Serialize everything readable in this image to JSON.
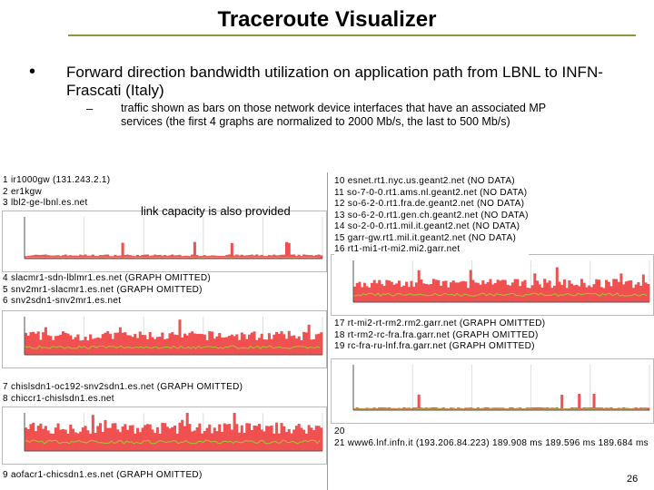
{
  "title": "Traceroute Visualizer",
  "bullet": {
    "text": "Forward direction bandwidth utilization on application path from LBNL to INFN-Frascati (Italy)",
    "sub": "traffic shown as bars on those network device interfaces that have an associated MP services (the first 4 graphs are normalized to 2000 Mb/s, the last to 500 Mb/s)"
  },
  "left_panels": [
    {
      "hops": [
        "1 ir1000gw (131.243.2.1)",
        "2 er1kgw",
        "3 lbl2-ge-lbnl.es.net"
      ],
      "note": "link capacity is also provided"
    },
    {
      "hops": [
        "4 slacmr1-sdn-lblmr1.es.net (GRAPH OMITTED)",
        "5 snv2mr1-slacmr1.es.net (GRAPH OMITTED)",
        "6 snv2sdn1-snv2mr1.es.net"
      ]
    },
    {
      "hops": [
        "7 chislsdn1-oc192-snv2sdn1.es.net (GRAPH OMITTED)",
        "8 chiccr1-chislsdn1.es.net"
      ]
    },
    {
      "hops": [
        "9 aofacr1-chicsdn1.es.net (GRAPH OMITTED)"
      ]
    }
  ],
  "right_panels": [
    {
      "hops": [
        "10 esnet.rt1.nyc.us.geant2.net (NO DATA)",
        "11 so-7-0-0.rt1.ams.nl.geant2.net (NO DATA)",
        "12 so-6-2-0.rt1.fra.de.geant2.net (NO DATA)",
        "13 so-6-2-0.rt1.gen.ch.geant2.net (NO DATA)",
        "14 so-2-0-0.rt1.mil.it.geant2.net (NO DATA)",
        "15 garr-gw.rt1.mil.it.geant2.net (NO DATA)",
        "16 rt1-mi1-rt-mi2.mi2.garr.net"
      ]
    },
    {
      "hops": [
        "17 rt-mi2-rt-rm2.rm2.garr.net (GRAPH OMITTED)",
        "18 rt-rm2-rc-fra.fra.garr.net (GRAPH OMITTED)",
        "19 rc-fra-ru-lnf.fra.garr.net (GRAPH OMITTED)"
      ]
    },
    {
      "hops": [
        "20",
        "21 www6.lnf.infn.it (193.206.84.223) 189.908 ms 189.596 ms 189.684 ms"
      ]
    }
  ],
  "page_number": "26"
}
